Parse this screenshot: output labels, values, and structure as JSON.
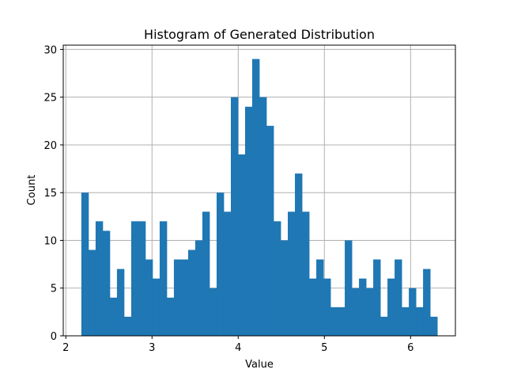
{
  "chart_data": {
    "type": "bar",
    "title": "Histogram of Generated Distribution",
    "xlabel": "Value",
    "ylabel": "Count",
    "xlim": [
      1.97,
      6.52
    ],
    "ylim": [
      0,
      30.45
    ],
    "grid": true,
    "x_ticks": [
      2,
      3,
      4,
      5,
      6
    ],
    "y_ticks": [
      0,
      5,
      10,
      15,
      20,
      25,
      30
    ],
    "bin_start": 2.18,
    "bin_width": 0.0826,
    "values": [
      15,
      9,
      12,
      11,
      4,
      7,
      2,
      12,
      12,
      8,
      6,
      12,
      4,
      8,
      8,
      9,
      10,
      13,
      5,
      15,
      13,
      25,
      19,
      24,
      29,
      25,
      22,
      12,
      10,
      13,
      17,
      13,
      6,
      8,
      6,
      3,
      3,
      10,
      5,
      6,
      5,
      8,
      2,
      6,
      8,
      3,
      5,
      3,
      7,
      2
    ],
    "bar_color": "#1f77b4",
    "grid_color": "#b0b0b0"
  }
}
